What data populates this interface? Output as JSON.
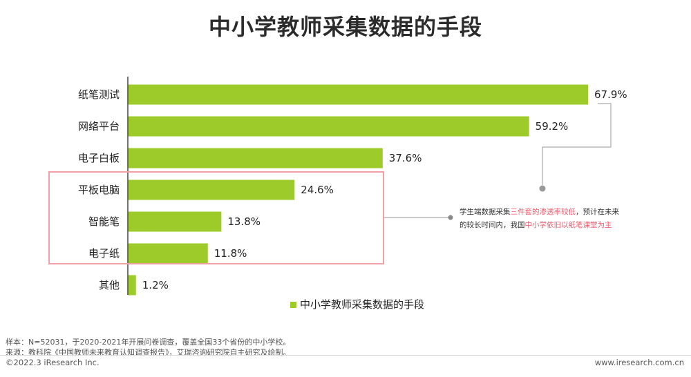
{
  "chart_data": {
    "type": "bar",
    "orientation": "horizontal",
    "title": "中小学教师采集数据的手段",
    "categories": [
      "纸笔测试",
      "网络平台",
      "电子白板",
      "平板电脑",
      "智能笔",
      "电子纸",
      "其他"
    ],
    "series": [
      {
        "name": "中小学教师采集数据的手段",
        "values": [
          67.9,
          59.2,
          37.6,
          24.6,
          13.8,
          11.8,
          1.2
        ],
        "labels": [
          "67.9%",
          "59.2%",
          "37.6%",
          "24.6%",
          "13.8%",
          "11.8%",
          "1.2%"
        ]
      }
    ],
    "value_unit": "%",
    "xlim": [
      0,
      100
    ],
    "grid": false,
    "legend_position": "bottom",
    "highlighted_categories": [
      "平板电脑",
      "智能笔",
      "电子纸"
    ],
    "annotation": {
      "segments": [
        {
          "text": "学生端数据采集",
          "highlight": false
        },
        {
          "text": "三件套的渗透率较低",
          "highlight": true
        },
        {
          "text": "，预计在未来",
          "highlight": false
        },
        {
          "text": "的较长时间内，我国",
          "highlight": false
        },
        {
          "text": "中小学依旧以纸笔课堂为主",
          "highlight": true
        }
      ]
    },
    "colors": {
      "bar": "#9ccb2a",
      "highlight_box": "#f0a0a6",
      "highlight_text": "#f15a6a",
      "callout_line": "#aaaaaa",
      "axis": "#444444"
    }
  },
  "notes": {
    "sample": "样本：N=52031，于2020-2021年开展问卷调查，覆盖全国33个省份的中小学校。",
    "source": "来源：教科院《中国教师未来教育认知调查报告》，艾瑞咨询研究院自主研究及绘制。"
  },
  "footer": {
    "copyright": "©2022.3 iResearch Inc.",
    "website": "www.iresearch.com.cn"
  }
}
